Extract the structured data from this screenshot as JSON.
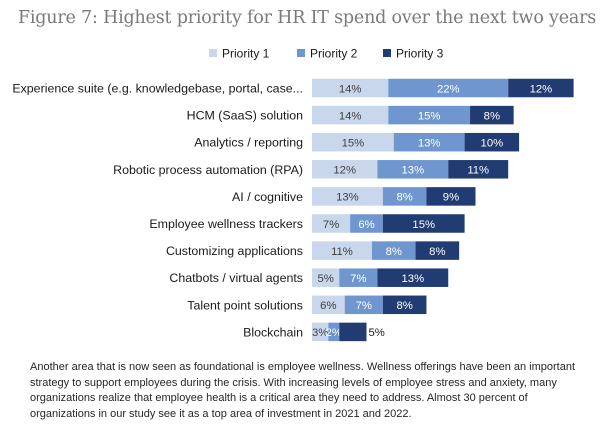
{
  "chart_data": {
    "type": "bar",
    "orientation": "horizontal",
    "stacked": true,
    "title": "Figure 7: Highest priority for HR IT spend over the next two years",
    "categories": [
      "Experience suite (e.g. knowledgebase, portal, case...",
      "HCM (SaaS) solution",
      "Analytics / reporting",
      "Robotic process automation (RPA)",
      "AI / cognitive",
      "Employee wellness trackers",
      "Customizing applications",
      "Chatbots / virtual agents",
      "Talent point solutions",
      "Blockchain"
    ],
    "series": [
      {
        "name": "Priority 1",
        "color": "#c9d7ec",
        "label_color": "#404040",
        "values": [
          14,
          14,
          15,
          12,
          13,
          7,
          11,
          5,
          6,
          3
        ],
        "labels": [
          "14%",
          "14%",
          "15%",
          "12%",
          "13%",
          "7%",
          "11%",
          "5%",
          "6%",
          "3%"
        ]
      },
      {
        "name": "Priority 2",
        "color": "#6f96cf",
        "label_color": "#ffffff",
        "values": [
          22,
          15,
          13,
          13,
          8,
          6,
          8,
          7,
          7,
          2
        ],
        "labels": [
          "22%",
          "15%",
          "13%",
          "13%",
          "8%",
          "6%",
          "8%",
          "7%",
          "7%",
          "2%"
        ]
      },
      {
        "name": "Priority 3",
        "color": "#213b73",
        "label_color": "#ffffff",
        "values": [
          12,
          8,
          10,
          11,
          9,
          15,
          8,
          13,
          8,
          5
        ],
        "labels": [
          "12%",
          "8%",
          "10%",
          "11%",
          "9%",
          "15%",
          "8%",
          "13%",
          "8%",
          "5%"
        ]
      }
    ],
    "xlabel": "",
    "ylabel": "",
    "xlim": [
      0,
      50
    ],
    "grid": false,
    "legend_position": "top"
  },
  "caption": "Another area that is now seen as foundational is employee wellness. Wellness offerings have been an important strategy to support employees during the crisis. With increasing levels of employee stress and anxiety, many organizations realize that employee health is a critical area they need to address. Almost 30 percent of organizations in our study see it as a top area of investment in 2021 and 2022."
}
